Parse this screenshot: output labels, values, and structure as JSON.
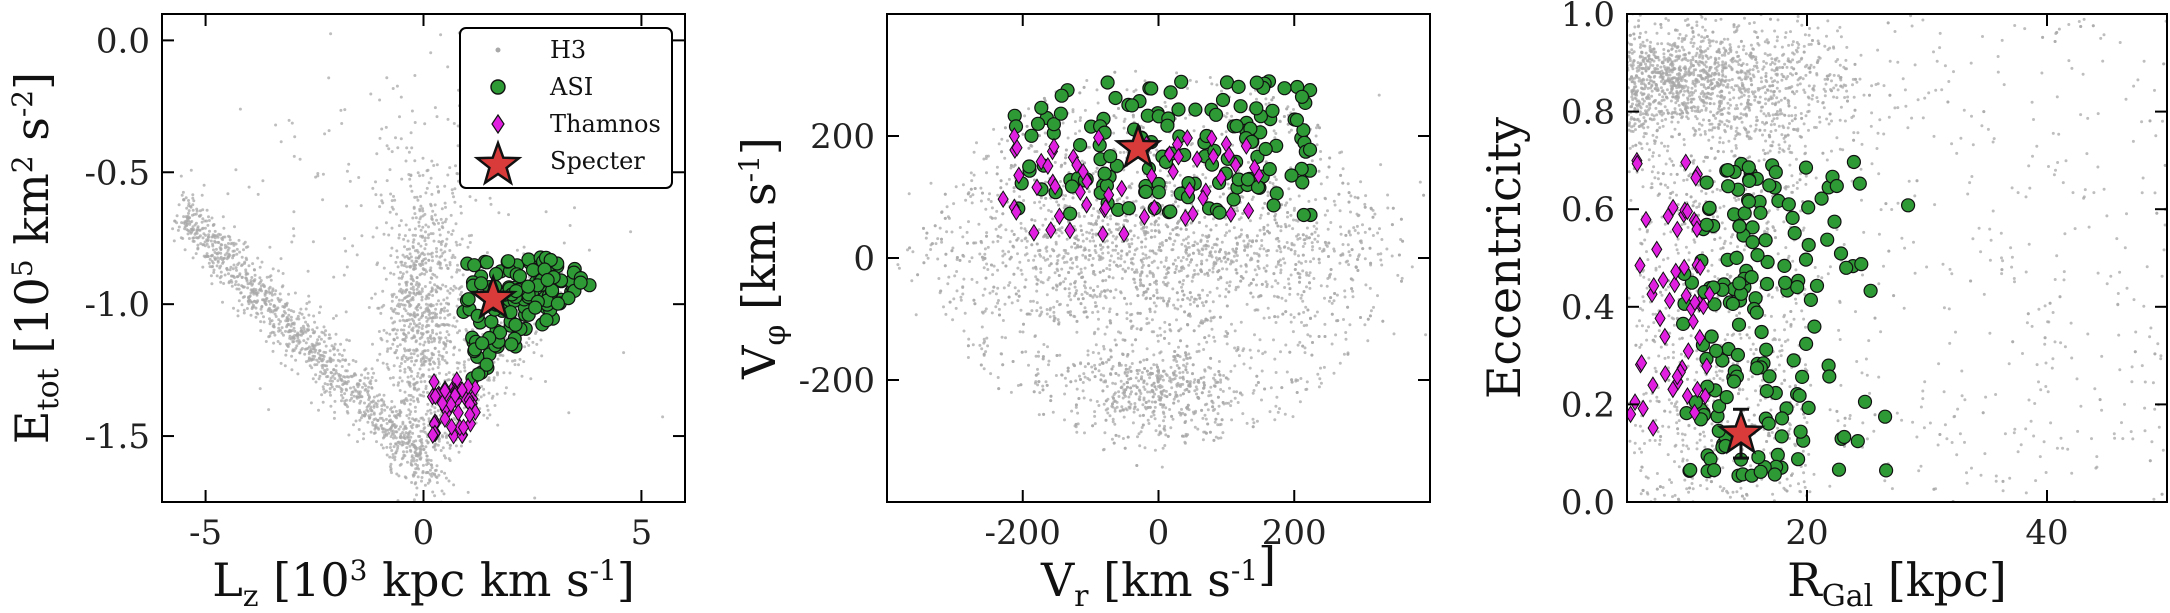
{
  "colors": {
    "h3": "#a8a8a8",
    "asi": "#2e9a36",
    "thamnos": "#e01fe0",
    "specter": "#d93a3a",
    "edge": "#111111"
  },
  "legend": {
    "entries": [
      {
        "key": "h3",
        "label": "H3",
        "marker": "dot"
      },
      {
        "key": "asi",
        "label": "ASI",
        "marker": "circle"
      },
      {
        "key": "thamnos",
        "label": "Thamnos",
        "marker": "diamond"
      },
      {
        "key": "specter",
        "label": "Specter",
        "marker": "star"
      }
    ],
    "placement": "top-right of first panel"
  },
  "chart_data": [
    {
      "type": "scatter",
      "title": "",
      "xlabel": {
        "main": "L",
        "sub": "z",
        "unit": "[10",
        "unit_sup": "3",
        "unit_rest": " kpc km s",
        "unit_sup2": "-1",
        "unit_end": "]"
      },
      "ylabel": {
        "main": "E",
        "sub": "tot",
        "unit": "[10",
        "unit_sup": "5",
        "unit_rest": " km",
        "unit_sup2": "2",
        "unit_mid": " s",
        "unit_sup3": "-2",
        "unit_end": "]"
      },
      "xlim": [
        -6,
        6
      ],
      "ylim": [
        -1.75,
        0.1
      ],
      "xticks": [
        -5,
        0,
        5
      ],
      "xtick_labels": [
        "-5",
        "0",
        "5"
      ],
      "yticks": [
        0.0,
        -0.5,
        -1.0,
        -1.5
      ],
      "ytick_labels": [
        "0.0",
        "-0.5",
        "-1.0",
        "-1.5"
      ],
      "series": [
        {
          "name": "H3",
          "style": "h3",
          "distribution": "v-shape chevron centered near Lz=0, bottom at E=-1.65, arms to (-5.5,-0.65) and (3,-0.9), dense core near (0,-1.0)"
        },
        {
          "name": "ASI",
          "style": "asi",
          "region": {
            "x": [
              1.0,
              3.8
            ],
            "y": [
              -1.33,
              -0.8
            ]
          },
          "count": 140
        },
        {
          "name": "Thamnos",
          "style": "thamnos",
          "region": {
            "x": [
              0.2,
              1.2
            ],
            "y": [
              -1.5,
              -1.28
            ]
          },
          "count": 45
        },
        {
          "name": "Specter",
          "style": "specter",
          "x": 1.6,
          "y": -0.98
        }
      ]
    },
    {
      "type": "scatter",
      "title": "",
      "xlabel": {
        "main": "V",
        "sub": "r",
        "unit": "[km s",
        "unit_sup": "-1",
        "unit_end": "]"
      },
      "ylabel": {
        "main": "V",
        "sub": "φ",
        "unit": "[km s",
        "unit_sup": "-1",
        "unit_end": "]"
      },
      "xlim": [
        -400,
        400
      ],
      "ylim": [
        -400,
        400
      ],
      "xticks": [
        -200,
        0,
        200
      ],
      "xtick_labels": [
        "-200",
        "0",
        "200"
      ],
      "yticks": [
        200,
        0,
        -200
      ],
      "ytick_labels": [
        "200",
        "0",
        "-200"
      ],
      "series": [
        {
          "name": "H3",
          "style": "h3",
          "distribution": "broad ellipse centered (0,0) with radius ~320, bulge near (0,-220)"
        },
        {
          "name": "ASI",
          "style": "asi",
          "region": {
            "x": [
              -220,
              230
            ],
            "y": [
              70,
              290
            ]
          },
          "count": 150
        },
        {
          "name": "Thamnos",
          "style": "thamnos",
          "region": {
            "x": [
              -230,
              150
            ],
            "y": [
              30,
              200
            ]
          },
          "count": 60
        },
        {
          "name": "Specter",
          "style": "specter",
          "x": -30,
          "y": 180
        }
      ]
    },
    {
      "type": "scatter",
      "title": "",
      "xlabel": {
        "main": "R",
        "sub": "Gal",
        "unit": "[kpc]"
      },
      "ylabel": {
        "main": "Eccentricity",
        "sub": "",
        "unit": ""
      },
      "xlim": [
        5,
        50
      ],
      "ylim": [
        0.0,
        1.0
      ],
      "xticks": [
        20,
        40
      ],
      "xtick_labels": [
        "20",
        "40"
      ],
      "yticks": [
        0.0,
        0.2,
        0.4,
        0.6,
        0.8,
        1.0
      ],
      "ytick_labels": [
        "0.0",
        "0.2",
        "0.4",
        "0.6",
        "0.8",
        "1.0"
      ],
      "series": [
        {
          "name": "H3",
          "style": "h3",
          "distribution": "dense band at ecc 0.75-0.95 for R 5-30, dense column at R 5-20 for all ecc, sparse elsewhere"
        },
        {
          "name": "ASI",
          "style": "asi",
          "region": {
            "x": [
              8,
              33
            ],
            "y": [
              0.05,
              0.7
            ]
          },
          "count": 170
        },
        {
          "name": "Thamnos",
          "style": "thamnos",
          "region": {
            "x": [
              5,
              12
            ],
            "y": [
              0.15,
              0.7
            ]
          },
          "count": 55
        },
        {
          "name": "Specter",
          "style": "specter",
          "x": 14.5,
          "y": 0.14,
          "yerr": 0.05
        }
      ]
    }
  ]
}
